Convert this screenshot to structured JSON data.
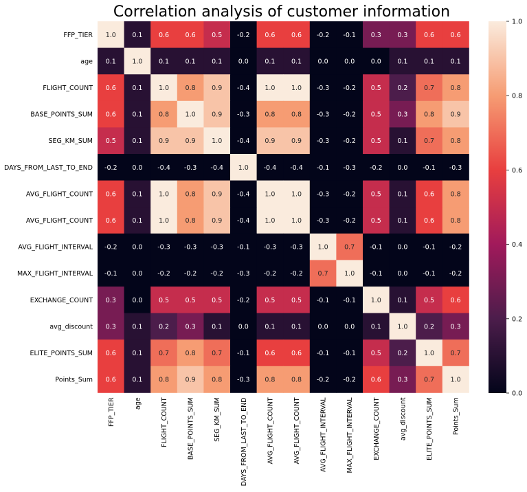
{
  "chart_data": {
    "type": "heatmap",
    "title": "Correlation analysis of customer information",
    "rows": [
      "FFP_TIER",
      "age",
      "FLIGHT_COUNT",
      "BASE_POINTS_SUM",
      "SEG_KM_SUM",
      "DAYS_FROM_LAST_TO_END",
      "AVG_FLIGHT_COUNT",
      "AVG_FLIGHT_COUNT",
      "AVG_FLIGHT_INTERVAL",
      "MAX_FLIGHT_INTERVAL",
      "EXCHANGE_COUNT",
      "avg_discount",
      "ELITE_POINTS_SUM",
      "Points_Sum"
    ],
    "columns": [
      "FFP_TIER",
      "age",
      "FLIGHT_COUNT",
      "BASE_POINTS_SUM",
      "SEG_KM_SUM",
      "DAYS_FROM_LAST_TO_END",
      "AVG_FLIGHT_COUNT",
      "AVG_FLIGHT_COUNT",
      "AVG_FLIGHT_INTERVAL",
      "MAX_FLIGHT_INTERVAL",
      "EXCHANGE_COUNT",
      "avg_discount",
      "ELITE_POINTS_SUM",
      "Points_Sum"
    ],
    "values": [
      [
        1.0,
        0.1,
        0.6,
        0.6,
        0.5,
        -0.2,
        0.6,
        0.6,
        -0.2,
        -0.1,
        0.3,
        0.3,
        0.6,
        0.6
      ],
      [
        0.1,
        1.0,
        0.1,
        0.1,
        0.1,
        -0.0,
        0.1,
        0.1,
        -0.0,
        0.0,
        0.0,
        0.1,
        0.1,
        0.1
      ],
      [
        0.6,
        0.1,
        1.0,
        0.8,
        0.9,
        -0.4,
        1.0,
        1.0,
        -0.3,
        -0.2,
        0.5,
        0.2,
        0.7,
        0.8
      ],
      [
        0.6,
        0.1,
        0.8,
        1.0,
        0.9,
        -0.3,
        0.8,
        0.8,
        -0.3,
        -0.2,
        0.5,
        0.3,
        0.8,
        0.9
      ],
      [
        0.5,
        0.1,
        0.9,
        0.9,
        1.0,
        -0.4,
        0.9,
        0.9,
        -0.3,
        -0.2,
        0.5,
        0.1,
        0.7,
        0.8
      ],
      [
        -0.2,
        -0.0,
        -0.4,
        -0.3,
        -0.4,
        1.0,
        -0.4,
        -0.4,
        -0.1,
        -0.3,
        -0.2,
        -0.0,
        -0.1,
        -0.3
      ],
      [
        0.6,
        0.1,
        1.0,
        0.8,
        0.9,
        -0.4,
        1.0,
        1.0,
        -0.3,
        -0.2,
        0.5,
        0.1,
        0.6,
        0.8
      ],
      [
        0.6,
        0.1,
        1.0,
        0.8,
        0.9,
        -0.4,
        1.0,
        1.0,
        -0.3,
        -0.2,
        0.5,
        0.1,
        0.6,
        0.8
      ],
      [
        -0.2,
        -0.0,
        -0.3,
        -0.3,
        -0.3,
        -0.1,
        -0.3,
        -0.3,
        1.0,
        0.7,
        -0.1,
        -0.0,
        -0.1,
        -0.2
      ],
      [
        -0.1,
        0.0,
        -0.2,
        -0.2,
        -0.2,
        -0.3,
        -0.2,
        -0.2,
        0.7,
        1.0,
        -0.1,
        -0.0,
        -0.1,
        -0.2
      ],
      [
        0.3,
        0.0,
        0.5,
        0.5,
        0.5,
        -0.2,
        0.5,
        0.5,
        -0.1,
        -0.1,
        1.0,
        0.1,
        0.5,
        0.6
      ],
      [
        0.3,
        0.1,
        0.2,
        0.3,
        0.1,
        -0.0,
        0.1,
        0.1,
        -0.0,
        -0.0,
        0.1,
        1.0,
        0.2,
        0.3
      ],
      [
        0.6,
        0.1,
        0.7,
        0.8,
        0.7,
        -0.1,
        0.6,
        0.6,
        -0.1,
        -0.1,
        0.5,
        0.2,
        1.0,
        0.7
      ],
      [
        0.6,
        0.1,
        0.8,
        0.9,
        0.8,
        -0.3,
        0.8,
        0.8,
        -0.2,
        -0.2,
        0.6,
        0.3,
        0.7,
        1.0
      ]
    ],
    "colorbar": {
      "range": [
        0.0,
        1.0
      ],
      "ticks": [
        "0.0",
        "0.2",
        "0.4",
        "0.6",
        "0.8",
        "1.0"
      ],
      "colormap": [
        "#03051a",
        "#4c1d4b",
        "#a11a5b",
        "#e83f3f",
        "#f69c73",
        "#faebdd"
      ]
    }
  }
}
